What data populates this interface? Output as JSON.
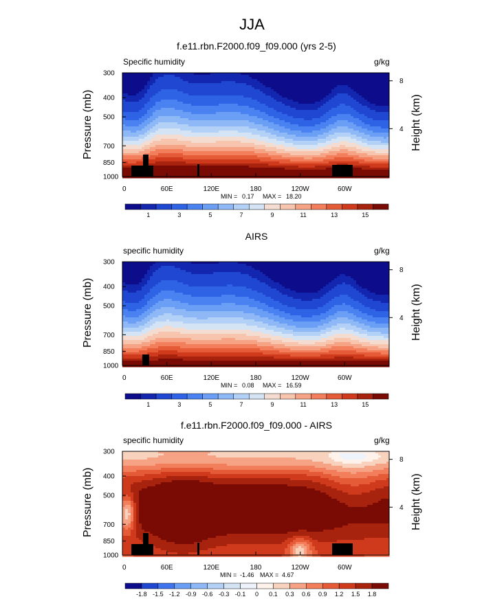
{
  "figure_title": "JJA",
  "colors": {
    "abs_palette": [
      "#0d0d8c",
      "#1326b0",
      "#1f47d1",
      "#2f63e6",
      "#4a82f2",
      "#6b9ef5",
      "#8fb8f7",
      "#b3d0f7",
      "#d4e4f5",
      "#f5dcd0",
      "#f7c4ad",
      "#f5a384",
      "#f27e5c",
      "#e55a37",
      "#cf3a1c",
      "#a8230e",
      "#7a0b04"
    ],
    "diff_palette": [
      "#0d0d8c",
      "#1f47d1",
      "#3f74ee",
      "#6b9ef5",
      "#8fb8f7",
      "#b3d0f7",
      "#d4e4f5",
      "#eef2fb",
      "#fff2ea",
      "#f9d2be",
      "#f5a384",
      "#f27e5c",
      "#e55a37",
      "#cf3a1c",
      "#a8230e",
      "#7a0b04"
    ],
    "topography": "#000000"
  },
  "chart_data": [
    {
      "type": "heatmap",
      "title": "f.e11.rbn.F2000.f09_f09.000 (yrs 2-5)",
      "left_label": "Specific humidity",
      "units": "g/kg",
      "ylabel": "Pressure (mb)",
      "ylabel_right": "Height (km)",
      "x_ticks": [
        "0",
        "60E",
        "120E",
        "180",
        "120W",
        "60W"
      ],
      "x_tick_values": [
        0,
        60,
        120,
        180,
        240,
        300
      ],
      "xlim": [
        0,
        360
      ],
      "y_ticks": [
        "300",
        "400",
        "500",
        "700",
        "850",
        "1000"
      ],
      "y_tick_values": [
        300,
        400,
        500,
        700,
        850,
        1000
      ],
      "ylim": [
        1000,
        300
      ],
      "y_scale": "log-pressure",
      "right_ticks": [
        "8",
        "4"
      ],
      "right_tick_values": [
        8,
        4
      ],
      "min_label": "MIN =",
      "min_value": "0.17",
      "max_label": "MAX =",
      "max_value": "18.20",
      "colorbar_labels": [
        "1",
        "3",
        "5",
        "7",
        "9",
        "11",
        "13",
        "15"
      ],
      "mode": "model"
    },
    {
      "type": "heatmap",
      "title": "AIRS",
      "left_label": "specific humidity",
      "units": "g/kg",
      "ylabel": "Pressure (mb)",
      "ylabel_right": "Height (km)",
      "x_ticks": [
        "0",
        "60E",
        "120E",
        "180",
        "120W",
        "60W"
      ],
      "x_tick_values": [
        0,
        60,
        120,
        180,
        240,
        300
      ],
      "xlim": [
        0,
        360
      ],
      "y_ticks": [
        "300",
        "400",
        "500",
        "700",
        "850",
        "1000"
      ],
      "y_tick_values": [
        300,
        400,
        500,
        700,
        850,
        1000
      ],
      "ylim": [
        1000,
        300
      ],
      "y_scale": "log-pressure",
      "right_ticks": [
        "8",
        "4"
      ],
      "right_tick_values": [
        8,
        4
      ],
      "min_label": "MIN =",
      "min_value": "0.08",
      "max_label": "MAX =",
      "max_value": "16.59",
      "colorbar_labels": [
        "1",
        "3",
        "5",
        "7",
        "9",
        "11",
        "13",
        "15"
      ],
      "mode": "obs"
    },
    {
      "type": "heatmap",
      "title": "f.e11.rbn.F2000.f09_f09.000 - AIRS",
      "left_label": "specific humidity",
      "units": "g/kg",
      "ylabel": "Pressure (mb)",
      "ylabel_right": "Height (km)",
      "x_ticks": [
        "0",
        "60E",
        "120E",
        "180",
        "120W",
        "60W"
      ],
      "x_tick_values": [
        0,
        60,
        120,
        180,
        240,
        300
      ],
      "xlim": [
        0,
        360
      ],
      "y_ticks": [
        "300",
        "400",
        "500",
        "700",
        "850",
        "1000"
      ],
      "y_tick_values": [
        300,
        400,
        500,
        700,
        850,
        1000
      ],
      "ylim": [
        1000,
        300
      ],
      "y_scale": "log-pressure",
      "right_ticks": [
        "8",
        "4"
      ],
      "right_tick_values": [
        8,
        4
      ],
      "min_label": "MIN =",
      "min_value": "-1.46",
      "max_label": "MAX =",
      "max_value": "4.67",
      "colorbar_labels": [
        "-1.8",
        "-1.5",
        "-1.2",
        "-0.9",
        "-0.6",
        "-0.3",
        "-0.1",
        "0",
        "0.1",
        "0.3",
        "0.6",
        "0.9",
        "1.2",
        "1.5",
        "1.8"
      ],
      "mode": "diff"
    }
  ]
}
